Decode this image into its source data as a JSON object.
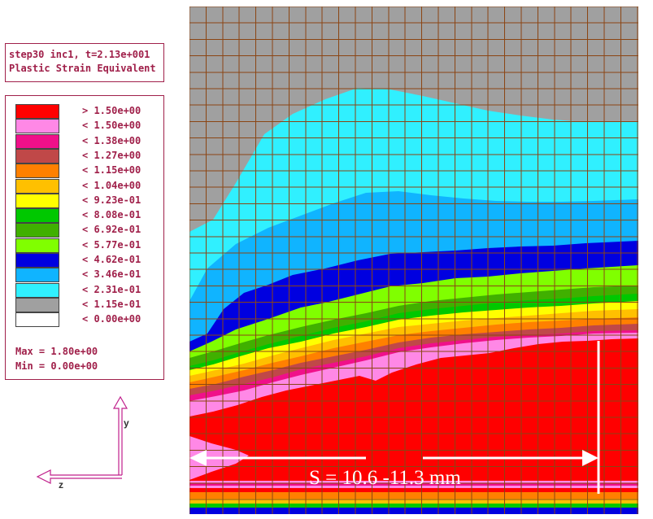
{
  "info": {
    "line1": "step30 inc1, t=2.13e+001",
    "line2": "Plastic Strain Equivalent"
  },
  "legend": {
    "items": [
      {
        "label": "> 1.50e+00",
        "color": "#ff0000"
      },
      {
        "label": "< 1.50e+00",
        "color": "#ff88e6"
      },
      {
        "label": "< 1.38e+00",
        "color": "#f0108a"
      },
      {
        "label": "< 1.27e+00",
        "color": "#c04848"
      },
      {
        "label": "< 1.15e+00",
        "color": "#ff8000"
      },
      {
        "label": "< 1.04e+00",
        "color": "#ffc000"
      },
      {
        "label": "< 9.23e-01",
        "color": "#ffff00"
      },
      {
        "label": "< 8.08e-01",
        "color": "#00c800"
      },
      {
        "label": "< 6.92e-01",
        "color": "#40b000"
      },
      {
        "label": "< 5.77e-01",
        "color": "#80ff00"
      },
      {
        "label": "< 4.62e-01",
        "color": "#0000e0"
      },
      {
        "label": "< 3.46e-01",
        "color": "#10b4ff"
      },
      {
        "label": "< 2.31e-01",
        "color": "#30f0ff"
      },
      {
        "label": "< 1.15e-01",
        "color": "#a0a0a0"
      },
      {
        "label": "< 0.00e+00",
        "color": "#ffffff"
      }
    ],
    "max_label": "Max = 1.80e+00",
    "min_label": "Min = 0.00e+00"
  },
  "axes": {
    "y_label": "y",
    "z_label": "z"
  },
  "annotation": {
    "text": "S = 10.6 -11.3 mm"
  },
  "colors": {
    "frame": "#a0204a",
    "grid": "#8b4513"
  }
}
